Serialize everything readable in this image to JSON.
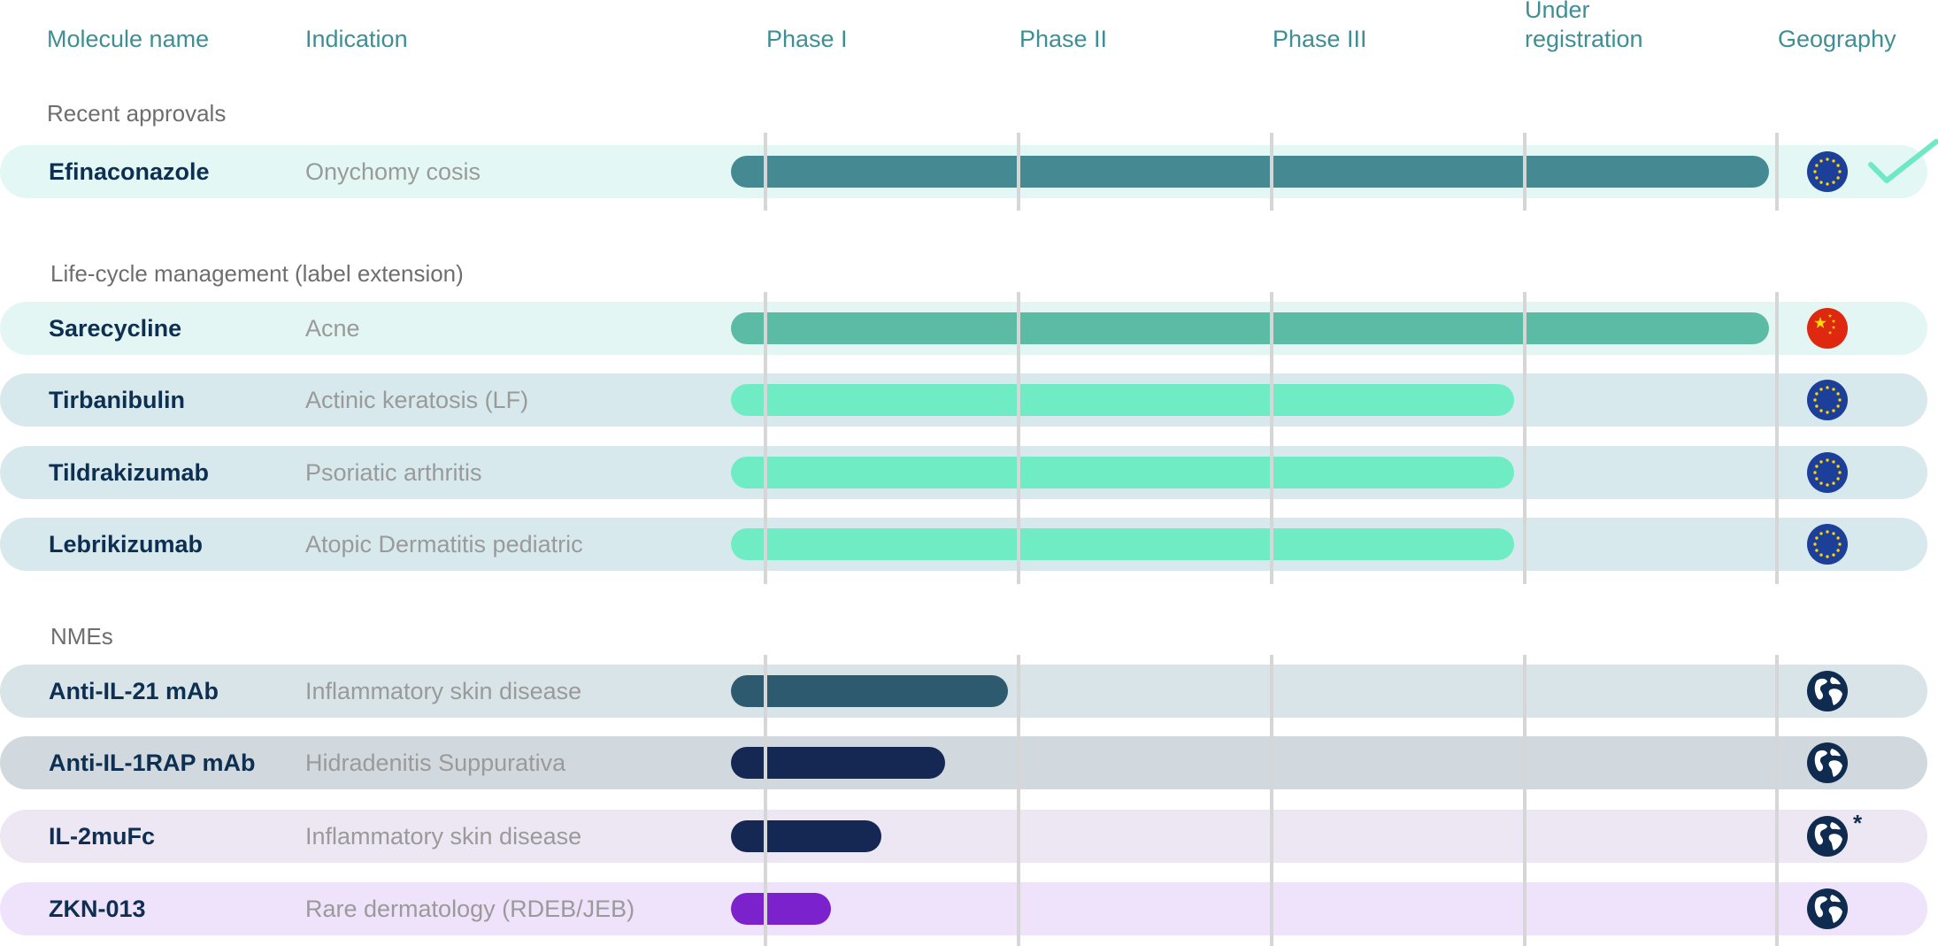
{
  "chart_data": {
    "type": "bar",
    "phases": [
      "Phase I",
      "Phase II",
      "Phase III",
      "Under\nregistration"
    ],
    "columns": {
      "molecule": "Molecule name",
      "indication": "Indication",
      "geography": "Geography"
    },
    "sections": [
      {
        "title": "Recent approvals",
        "rows": [
          {
            "molecule": "Efinaconazole",
            "indication": "Onychomy cosis",
            "progress_phases": 4.0,
            "bar_color": "#458a92",
            "row_color": "#e3f8f4",
            "geography": "eu-flag-icon",
            "approved": true
          }
        ]
      },
      {
        "title": "Life-cycle management (label extension)",
        "rows": [
          {
            "molecule": "Sarecycline",
            "indication": "Acne",
            "progress_phases": 4.0,
            "bar_color": "#5bbba4",
            "row_color": "#e3f6f3",
            "geography": "china-flag-icon",
            "approved": false
          },
          {
            "molecule": "Tirbanibulin",
            "indication": "Actinic keratosis (LF)",
            "progress_phases": 3.0,
            "bar_color": "#70ecc4",
            "row_color": "#d7e9ec",
            "geography": "eu-flag-icon",
            "approved": false
          },
          {
            "molecule": "Tildrakizumab",
            "indication": "Psoriatic arthritis",
            "progress_phases": 3.0,
            "bar_color": "#70ecc4",
            "row_color": "#d7e9ec",
            "geography": "eu-flag-icon",
            "approved": false
          },
          {
            "molecule": "Lebrikizumab",
            "indication": "Atopic Dermatitis pediatric",
            "progress_phases": 3.0,
            "bar_color": "#70ecc4",
            "row_color": "#d7e9ec",
            "geography": "eu-flag-icon",
            "approved": false
          }
        ]
      },
      {
        "title": "NMEs",
        "rows": [
          {
            "molecule": "Anti-IL-21 mAb",
            "indication": "Inflammatory skin disease",
            "progress_phases": 1.0,
            "bar_color": "#2e5a70",
            "row_color": "#d8e4e7",
            "geography": "globe-icon",
            "approved": false
          },
          {
            "molecule": "Anti-IL-1RAP mAb",
            "indication": "Hidradenitis Suppurativa",
            "progress_phases": 0.75,
            "bar_color": "#142853",
            "row_color": "#d1d9df",
            "geography": "globe-icon",
            "approved": false
          },
          {
            "molecule": "IL-2muFc",
            "indication": "Inflammatory skin disease",
            "progress_phases": 0.5,
            "bar_color": "#142853",
            "row_color": "#ede6f3",
            "geography": "globe-icon",
            "geography_note": "*",
            "approved": false
          },
          {
            "molecule": "ZKN-013",
            "indication": "Rare dermatology (RDEB/JEB)",
            "progress_phases": 0.3,
            "bar_color": "#7b22cc",
            "row_color": "#efe3fc",
            "geography": "globe-icon",
            "approved": false
          }
        ]
      }
    ]
  }
}
